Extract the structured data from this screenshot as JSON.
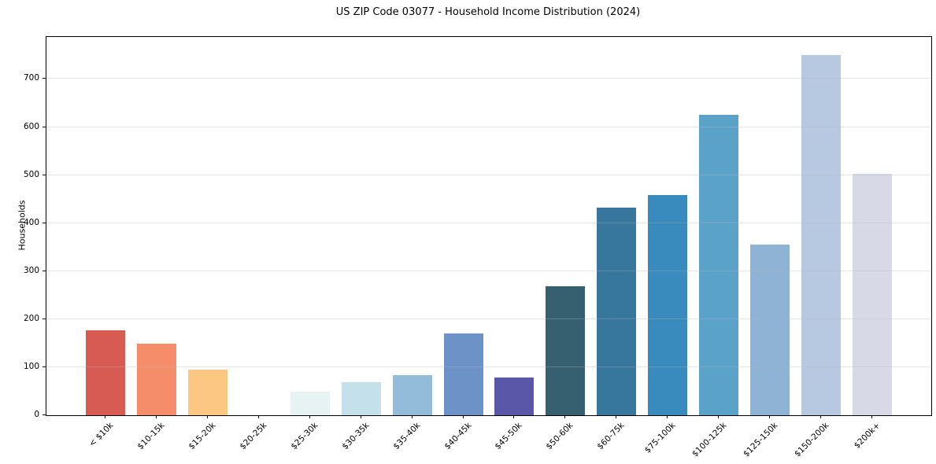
{
  "chart_data": {
    "type": "bar",
    "title": "US ZIP Code 03077 - Household Income Distribution (2024)",
    "xlabel": "",
    "ylabel": "Households",
    "categories": [
      "< $10k",
      "$10-15k",
      "$15-20k",
      "$20-25k",
      "$25-30k",
      "$30-35k",
      "$35-40k",
      "$40-45k",
      "$45-50k",
      "$50-60k",
      "$60-75k",
      "$75-100k",
      "$100-125k",
      "$125-150k",
      "$150-200k",
      "$200k+"
    ],
    "values": [
      177,
      149,
      95,
      0,
      49,
      69,
      84,
      170,
      79,
      268,
      432,
      458,
      626,
      356,
      750,
      503
    ],
    "bar_colors": [
      "#d75b53",
      "#f58d6b",
      "#fbc783",
      "#f2e3c9",
      "#e7f3f2",
      "#c4e0eb",
      "#92bcd9",
      "#6c92c8",
      "#5b57a8",
      "#36606f",
      "#37779e",
      "#398bbe",
      "#5ba2c9",
      "#8eb3d5",
      "#b7c8e1",
      "#d7d9e7"
    ],
    "yticks": [
      0,
      100,
      200,
      300,
      400,
      500,
      600,
      700
    ],
    "ylim": [
      0,
      787.5
    ],
    "grid": "horizontal-y",
    "gridline_color": "#e6e6e6",
    "axis_color": "#000000",
    "legend": "none"
  }
}
